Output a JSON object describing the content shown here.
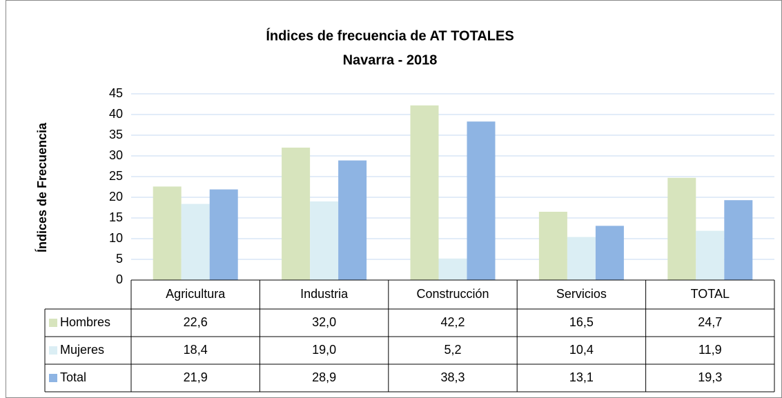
{
  "chart_data": {
    "type": "bar",
    "title": "Índices de frecuencia de AT TOTALES",
    "subtitle": "Navarra - 2018",
    "y_label": "Índices de Frecuencia",
    "categories": [
      "Agricultura",
      "Industria",
      "Construcción",
      "Servicios",
      "TOTAL"
    ],
    "series": [
      {
        "name": "Hombres",
        "color": "#d7e4bd",
        "values": [
          22.6,
          32.0,
          42.2,
          16.5,
          24.7
        ],
        "value_labels": [
          "22,6",
          "32,0",
          "42,2",
          "16,5",
          "24,7"
        ]
      },
      {
        "name": "Mujeres",
        "color": "#dbeef4",
        "values": [
          18.4,
          19.0,
          5.2,
          10.4,
          11.9
        ],
        "value_labels": [
          "18,4",
          "19,0",
          "5,2",
          "10,4",
          "11,9"
        ]
      },
      {
        "name": "Total",
        "color": "#8eb4e3",
        "values": [
          21.9,
          28.9,
          38.3,
          13.1,
          19.3
        ],
        "value_labels": [
          "21,9",
          "28,9",
          "38,3",
          "13,1",
          "19,3"
        ]
      }
    ],
    "ylim": [
      0,
      45
    ],
    "yticks": [
      0,
      5,
      10,
      15,
      20,
      25,
      30,
      35,
      40,
      45
    ],
    "grid": true
  }
}
